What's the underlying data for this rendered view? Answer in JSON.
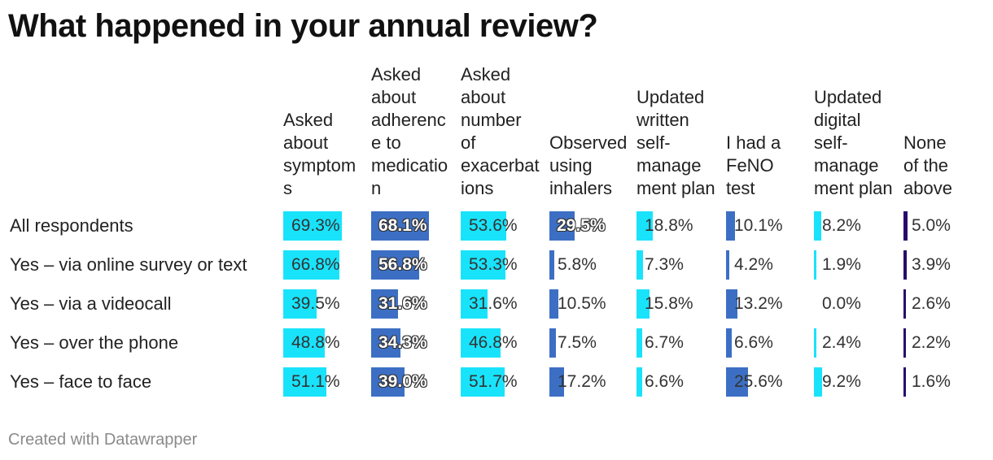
{
  "title": "What happened in your annual review?",
  "footer": "Created with Datawrapper",
  "colors": {
    "light": "#19e3fb",
    "medium": "#3c6fc4",
    "dark": "#270a6b"
  },
  "chart_data": {
    "type": "table",
    "title": "What happened in your annual review?",
    "columns": [
      {
        "label": "Asked\nabout\nsymptom\ns",
        "color": "#19e3fb"
      },
      {
        "label": "Asked\nabout\nadherenc\ne to\nmedicatio\nn",
        "color": "#3c6fc4"
      },
      {
        "label": "Asked\nabout\nnumber\nof\nexacerbat\nions",
        "color": "#19e3fb"
      },
      {
        "label": "Observed\nusing\ninhalers",
        "color": "#3c6fc4"
      },
      {
        "label": "Updated\nwritten\nself-\nmanage\nment plan",
        "color": "#19e3fb"
      },
      {
        "label": "I had a\nFeNO\ntest",
        "color": "#3c6fc4"
      },
      {
        "label": "Updated\ndigital\nself-\nmanage\nment plan",
        "color": "#19e3fb"
      },
      {
        "label": "None\nof the\nabove",
        "color": "#270a6b"
      }
    ],
    "rows": [
      {
        "label": "All respondents",
        "values": [
          69.3,
          68.1,
          53.6,
          29.5,
          18.8,
          10.1,
          8.2,
          5.0
        ],
        "display": [
          "69.3%",
          "68.1%",
          "53.6%",
          "29.5%",
          "18.8%",
          "10.1%",
          "8.2%",
          "5.0%"
        ]
      },
      {
        "label": "Yes – via online survey or text",
        "values": [
          66.8,
          56.8,
          53.3,
          5.8,
          7.3,
          4.2,
          1.9,
          3.9
        ],
        "display": [
          "66.8%",
          "56.8%",
          "53.3%",
          "5.8%",
          "7.3%",
          "4.2%",
          "1.9%",
          "3.9%"
        ]
      },
      {
        "label": "Yes – via a videocall",
        "values": [
          39.5,
          31.6,
          31.6,
          10.5,
          15.8,
          13.2,
          0.0,
          2.6
        ],
        "display": [
          "39.5%",
          "31.6%",
          "31.6%",
          "10.5%",
          "15.8%",
          "13.2%",
          "0.0%",
          "2.6%"
        ]
      },
      {
        "label": "Yes – over the phone",
        "values": [
          48.8,
          34.3,
          46.8,
          7.5,
          6.7,
          6.6,
          2.4,
          2.2
        ],
        "display": [
          "48.8%",
          "34.3%",
          "46.8%",
          "7.5%",
          "6.7%",
          "6.6%",
          "2.4%",
          "2.2%"
        ]
      },
      {
        "label": "Yes – face to face",
        "values": [
          51.1,
          39.0,
          51.7,
          17.2,
          6.6,
          25.6,
          9.2,
          1.6
        ],
        "display": [
          "51.1%",
          "39.0%",
          "51.7%",
          "17.2%",
          "6.6%",
          "25.6%",
          "9.2%",
          "1.6%"
        ]
      }
    ]
  }
}
